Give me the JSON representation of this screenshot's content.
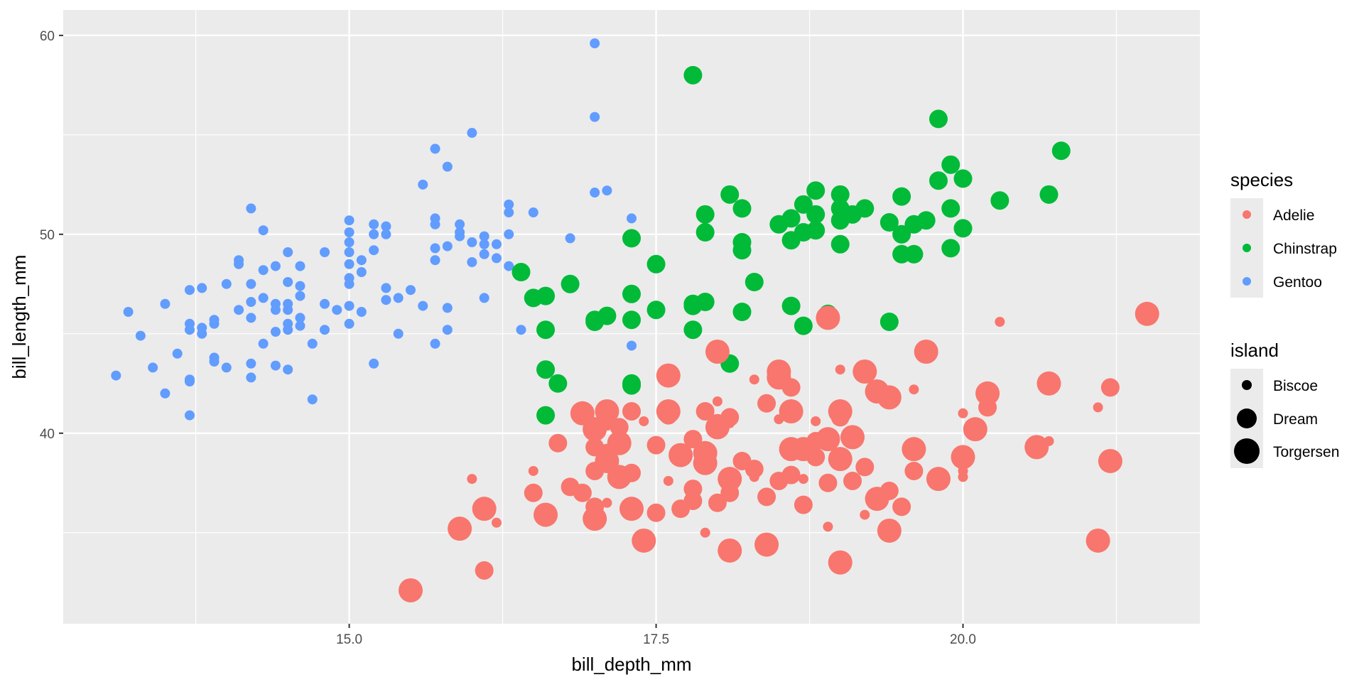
{
  "chart_data": {
    "type": "scatter",
    "title": "",
    "xlabel": "bill_depth_mm",
    "ylabel": "bill_length_mm",
    "xlim": [
      12.67,
      21.93
    ],
    "ylim": [
      30.42,
      61.28
    ],
    "x_ticks": [
      15.0,
      17.5,
      20.0
    ],
    "x_tick_labels": [
      "15.0",
      "17.5",
      "20.0"
    ],
    "y_ticks": [
      40,
      50,
      60
    ],
    "y_tick_labels": [
      "40",
      "50",
      "60"
    ],
    "grid": true,
    "legend_position": "right",
    "colors": {
      "Adelie": "#F8766D",
      "Chinstrap": "#00BA38",
      "Gentoo": "#619CFF",
      "panel": "#EBEBEB",
      "grid": "#FFFFFF"
    },
    "color_legend": {
      "title": "species",
      "entries": [
        "Adelie",
        "Chinstrap",
        "Gentoo"
      ]
    },
    "size_legend": {
      "title": "island",
      "entries": [
        "Biscoe",
        "Dream",
        "Torgersen"
      ]
    },
    "series": [
      {
        "name": "Gentoo",
        "island": "Biscoe",
        "points": [
          [
            13.1,
            42.9
          ],
          [
            13.2,
            46.1
          ],
          [
            13.3,
            44.9
          ],
          [
            13.4,
            43.3
          ],
          [
            13.5,
            42.0
          ],
          [
            13.5,
            46.5
          ],
          [
            13.6,
            44.0
          ],
          [
            13.7,
            40.9
          ],
          [
            13.7,
            42.6
          ],
          [
            13.7,
            42.7
          ],
          [
            13.7,
            45.2
          ],
          [
            13.7,
            45.5
          ],
          [
            13.7,
            47.2
          ],
          [
            13.8,
            45.0
          ],
          [
            13.8,
            45.3
          ],
          [
            13.8,
            47.3
          ],
          [
            13.9,
            45.5
          ],
          [
            13.9,
            45.7
          ],
          [
            13.9,
            43.6
          ],
          [
            13.9,
            43.8
          ],
          [
            14.0,
            43.3
          ],
          [
            14.0,
            47.5
          ],
          [
            14.1,
            46.2
          ],
          [
            14.1,
            48.5
          ],
          [
            14.1,
            48.7
          ],
          [
            14.2,
            51.3
          ],
          [
            14.2,
            47.5
          ],
          [
            14.2,
            46.6
          ],
          [
            14.2,
            45.8
          ],
          [
            14.2,
            43.5
          ],
          [
            14.2,
            42.8
          ],
          [
            14.3,
            50.2
          ],
          [
            14.3,
            48.2
          ],
          [
            14.3,
            46.8
          ],
          [
            14.3,
            44.5
          ],
          [
            14.4,
            48.4
          ],
          [
            14.4,
            46.5
          ],
          [
            14.4,
            46.2
          ],
          [
            14.4,
            45.1
          ],
          [
            14.4,
            43.4
          ],
          [
            14.5,
            49.1
          ],
          [
            14.5,
            47.6
          ],
          [
            14.5,
            46.5
          ],
          [
            14.5,
            46.2
          ],
          [
            14.5,
            45.5
          ],
          [
            14.5,
            45.2
          ],
          [
            14.5,
            43.2
          ],
          [
            14.6,
            48.4
          ],
          [
            14.6,
            47.4
          ],
          [
            14.6,
            46.9
          ],
          [
            14.6,
            45.8
          ],
          [
            14.6,
            45.4
          ],
          [
            14.7,
            44.5
          ],
          [
            14.7,
            41.7
          ],
          [
            14.8,
            49.1
          ],
          [
            14.8,
            46.5
          ],
          [
            14.8,
            45.2
          ],
          [
            14.9,
            46.2
          ],
          [
            15.0,
            50.7
          ],
          [
            15.0,
            50.1
          ],
          [
            15.0,
            49.6
          ],
          [
            15.0,
            49.1
          ],
          [
            15.0,
            48.5
          ],
          [
            15.0,
            47.8
          ],
          [
            15.0,
            47.5
          ],
          [
            15.0,
            46.4
          ],
          [
            15.0,
            45.5
          ],
          [
            15.1,
            48.7
          ],
          [
            15.1,
            48.1
          ],
          [
            15.1,
            46.1
          ],
          [
            15.2,
            50.5
          ],
          [
            15.2,
            50.0
          ],
          [
            15.2,
            49.2
          ],
          [
            15.2,
            43.5
          ],
          [
            15.3,
            50.4
          ],
          [
            15.3,
            50.0
          ],
          [
            15.3,
            47.3
          ],
          [
            15.3,
            46.7
          ],
          [
            15.4,
            46.8
          ],
          [
            15.4,
            45.0
          ],
          [
            15.5,
            47.2
          ],
          [
            15.6,
            52.5
          ],
          [
            15.6,
            46.4
          ],
          [
            15.7,
            54.3
          ],
          [
            15.7,
            50.8
          ],
          [
            15.7,
            50.5
          ],
          [
            15.7,
            49.3
          ],
          [
            15.7,
            48.7
          ],
          [
            15.7,
            44.5
          ],
          [
            15.8,
            53.4
          ],
          [
            15.8,
            49.4
          ],
          [
            15.8,
            46.3
          ],
          [
            15.8,
            45.2
          ],
          [
            15.9,
            50.5
          ],
          [
            15.9,
            50.1
          ],
          [
            15.9,
            49.9
          ],
          [
            16.0,
            55.1
          ],
          [
            16.0,
            49.6
          ],
          [
            16.0,
            48.6
          ],
          [
            16.1,
            49.5
          ],
          [
            16.1,
            46.8
          ],
          [
            16.1,
            49.0
          ],
          [
            16.1,
            49.9
          ],
          [
            16.2,
            49.5
          ],
          [
            16.2,
            48.8
          ],
          [
            16.3,
            51.5
          ],
          [
            16.3,
            51.1
          ],
          [
            16.3,
            50.0
          ],
          [
            16.3,
            48.4
          ],
          [
            16.4,
            45.2
          ],
          [
            16.5,
            51.1
          ],
          [
            16.8,
            49.8
          ],
          [
            17.0,
            59.6
          ],
          [
            17.0,
            55.9
          ],
          [
            17.0,
            52.1
          ],
          [
            17.1,
            52.2
          ],
          [
            17.3,
            50.8
          ],
          [
            17.3,
            44.4
          ]
        ]
      },
      {
        "name": "Chinstrap",
        "island": "Dream",
        "points": [
          [
            16.4,
            48.1
          ],
          [
            16.5,
            46.8
          ],
          [
            16.6,
            46.9
          ],
          [
            16.6,
            45.2
          ],
          [
            16.6,
            43.2
          ],
          [
            16.6,
            40.9
          ],
          [
            16.7,
            42.5
          ],
          [
            16.8,
            47.5
          ],
          [
            17.0,
            45.6
          ],
          [
            17.0,
            45.7
          ],
          [
            17.1,
            45.9
          ],
          [
            17.3,
            49.8
          ],
          [
            17.3,
            47.0
          ],
          [
            17.3,
            45.7
          ],
          [
            17.3,
            42.4
          ],
          [
            17.3,
            42.5
          ],
          [
            17.5,
            48.5
          ],
          [
            17.5,
            46.2
          ],
          [
            17.8,
            58.0
          ],
          [
            17.8,
            46.5
          ],
          [
            17.8,
            46.4
          ],
          [
            17.8,
            45.2
          ],
          [
            17.9,
            51.0
          ],
          [
            17.9,
            50.1
          ],
          [
            17.9,
            46.6
          ],
          [
            18.1,
            52.0
          ],
          [
            18.1,
            43.5
          ],
          [
            18.2,
            51.3
          ],
          [
            18.2,
            49.6
          ],
          [
            18.2,
            49.2
          ],
          [
            18.2,
            46.1
          ],
          [
            18.3,
            47.6
          ],
          [
            18.5,
            50.5
          ],
          [
            18.6,
            50.8
          ],
          [
            18.6,
            49.7
          ],
          [
            18.6,
            46.4
          ],
          [
            18.7,
            51.5
          ],
          [
            18.7,
            50.1
          ],
          [
            18.7,
            45.4
          ],
          [
            18.8,
            52.2
          ],
          [
            18.8,
            51.0
          ],
          [
            18.8,
            50.2
          ],
          [
            18.9,
            46.0
          ],
          [
            19.0,
            52.0
          ],
          [
            19.0,
            51.3
          ],
          [
            19.0,
            50.7
          ],
          [
            19.0,
            49.5
          ],
          [
            19.1,
            51.0
          ],
          [
            19.2,
            51.3
          ],
          [
            19.4,
            50.6
          ],
          [
            19.4,
            45.6
          ],
          [
            19.5,
            51.9
          ],
          [
            19.5,
            50.0
          ],
          [
            19.5,
            49.0
          ],
          [
            19.6,
            50.5
          ],
          [
            19.6,
            49.0
          ],
          [
            19.7,
            50.7
          ],
          [
            19.8,
            55.8
          ],
          [
            19.8,
            52.7
          ],
          [
            19.9,
            53.5
          ],
          [
            19.9,
            51.3
          ],
          [
            19.9,
            49.3
          ],
          [
            20.0,
            52.8
          ],
          [
            20.0,
            50.3
          ],
          [
            20.3,
            51.7
          ],
          [
            20.7,
            52.0
          ],
          [
            20.8,
            54.2
          ]
        ]
      },
      {
        "name": "Adelie",
        "island": "Torgersen",
        "points": [
          [
            15.5,
            32.1
          ],
          [
            15.9,
            35.2
          ],
          [
            16.1,
            36.2
          ],
          [
            16.6,
            35.9
          ],
          [
            16.9,
            41.0
          ],
          [
            17.0,
            40.2
          ],
          [
            17.0,
            35.7
          ],
          [
            17.1,
            41.1
          ],
          [
            17.1,
            38.6
          ],
          [
            17.2,
            39.5
          ],
          [
            17.2,
            37.8
          ],
          [
            17.3,
            36.2
          ],
          [
            17.4,
            34.6
          ],
          [
            17.6,
            42.9
          ],
          [
            17.6,
            41.1
          ],
          [
            17.7,
            38.9
          ],
          [
            17.9,
            39.0
          ],
          [
            17.9,
            38.5
          ],
          [
            18.0,
            44.1
          ],
          [
            18.0,
            40.3
          ],
          [
            18.1,
            37.7
          ],
          [
            18.1,
            34.1
          ],
          [
            18.4,
            34.4
          ],
          [
            18.5,
            43.1
          ],
          [
            18.5,
            42.8
          ],
          [
            18.6,
            41.1
          ],
          [
            18.6,
            39.2
          ],
          [
            18.7,
            39.2
          ],
          [
            18.9,
            45.8
          ],
          [
            18.9,
            39.7
          ],
          [
            19.0,
            41.1
          ],
          [
            19.0,
            38.7
          ],
          [
            19.0,
            33.5
          ],
          [
            19.1,
            39.8
          ],
          [
            19.2,
            43.1
          ],
          [
            19.3,
            36.7
          ],
          [
            19.3,
            42.1
          ],
          [
            19.4,
            41.8
          ],
          [
            19.4,
            35.1
          ],
          [
            19.6,
            39.2
          ],
          [
            19.7,
            44.1
          ],
          [
            19.8,
            37.7
          ],
          [
            20.0,
            38.8
          ],
          [
            20.1,
            40.2
          ],
          [
            20.2,
            42.0
          ],
          [
            20.6,
            39.3
          ],
          [
            20.7,
            42.5
          ],
          [
            21.1,
            34.6
          ],
          [
            21.2,
            38.6
          ],
          [
            21.5,
            46.0
          ]
        ]
      },
      {
        "name": "Adelie",
        "island": "Dream",
        "points": [
          [
            16.1,
            33.1
          ],
          [
            16.5,
            37.0
          ],
          [
            16.6,
            35.9
          ],
          [
            16.7,
            39.5
          ],
          [
            16.8,
            37.3
          ],
          [
            16.9,
            37.0
          ],
          [
            17.0,
            39.3
          ],
          [
            17.0,
            38.1
          ],
          [
            17.0,
            36.3
          ],
          [
            17.1,
            40.6
          ],
          [
            17.1,
            39.0
          ],
          [
            17.2,
            40.3
          ],
          [
            17.3,
            38.0
          ],
          [
            17.5,
            39.4
          ],
          [
            17.5,
            36.0
          ],
          [
            17.6,
            40.9
          ],
          [
            17.7,
            36.2
          ],
          [
            17.8,
            39.7
          ],
          [
            17.8,
            36.6
          ],
          [
            17.8,
            37.2
          ],
          [
            17.9,
            41.1
          ],
          [
            18.0,
            40.5
          ],
          [
            18.0,
            36.5
          ],
          [
            18.1,
            40.8
          ],
          [
            18.1,
            37.0
          ],
          [
            18.3,
            38.2
          ],
          [
            18.4,
            41.5
          ],
          [
            18.4,
            36.8
          ],
          [
            18.5,
            37.6
          ],
          [
            18.6,
            42.3
          ],
          [
            18.6,
            37.9
          ],
          [
            18.7,
            36.4
          ],
          [
            18.8,
            38.8
          ],
          [
            18.9,
            37.5
          ],
          [
            19.0,
            40.8
          ],
          [
            19.1,
            37.6
          ],
          [
            19.2,
            38.3
          ],
          [
            19.4,
            37.1
          ],
          [
            19.5,
            36.3
          ],
          [
            20.2,
            41.3
          ],
          [
            21.2,
            42.3
          ],
          [
            19.6,
            38.1
          ],
          [
            18.8,
            39.6
          ],
          [
            17.3,
            41.1
          ],
          [
            18.2,
            38.6
          ]
        ]
      },
      {
        "name": "Adelie",
        "island": "Biscoe",
        "points": [
          [
            16.0,
            37.7
          ],
          [
            16.2,
            35.5
          ],
          [
            16.5,
            38.1
          ],
          [
            17.1,
            36.5
          ],
          [
            17.4,
            40.6
          ],
          [
            17.6,
            37.6
          ],
          [
            17.9,
            35.0
          ],
          [
            18.0,
            41.6
          ],
          [
            18.1,
            40.5
          ],
          [
            18.3,
            42.7
          ],
          [
            18.3,
            37.8
          ],
          [
            18.5,
            40.7
          ],
          [
            18.7,
            37.7
          ],
          [
            18.8,
            40.6
          ],
          [
            18.9,
            35.3
          ],
          [
            19.0,
            43.2
          ],
          [
            19.2,
            35.9
          ],
          [
            19.6,
            42.2
          ],
          [
            20.0,
            41.0
          ],
          [
            20.0,
            38.1
          ],
          [
            20.0,
            37.8
          ],
          [
            20.3,
            45.6
          ],
          [
            20.7,
            39.6
          ],
          [
            21.1,
            41.3
          ]
        ]
      }
    ]
  }
}
